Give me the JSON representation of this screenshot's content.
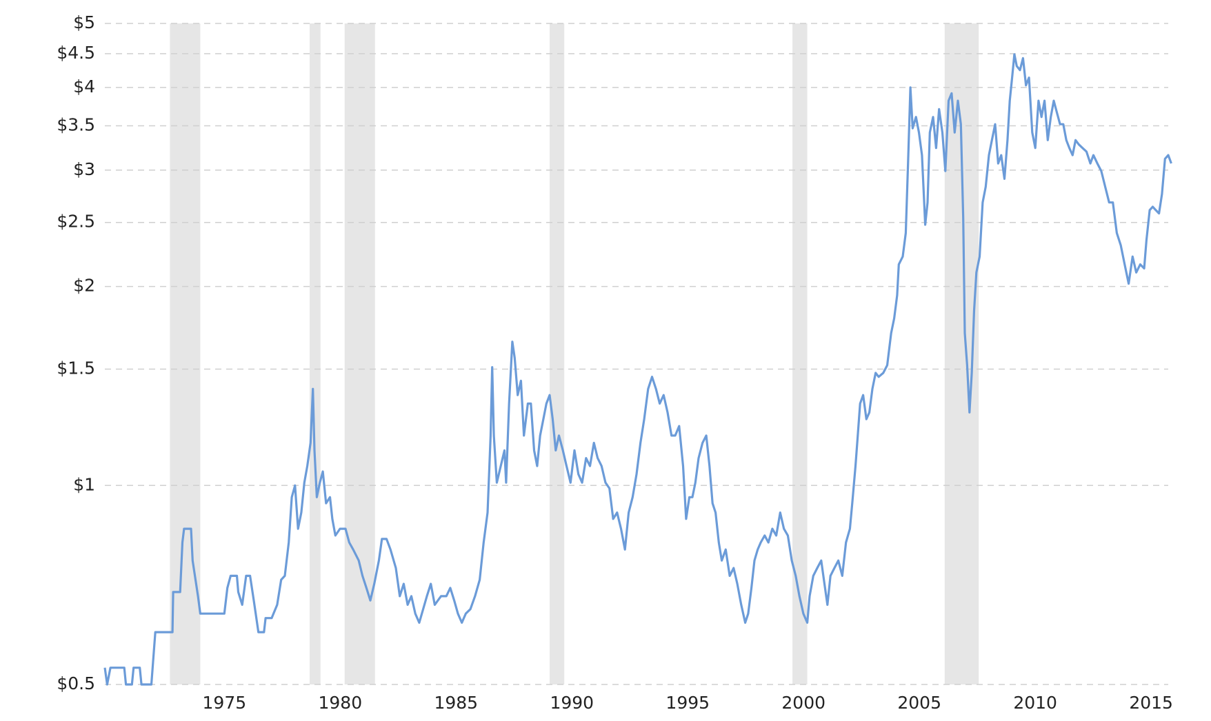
{
  "chart_data": {
    "type": "line",
    "log_scale": true,
    "grid": true,
    "color": "#6b9bd8",
    "shade_color": "#e6e6e6",
    "xlim": [
      1969.84,
      2015.74
    ],
    "ylim": [
      0.5,
      5
    ],
    "xticks": [
      1975,
      1980,
      1985,
      1990,
      1995,
      2000,
      2005,
      2010,
      2015
    ],
    "yticks": [
      {
        "value": 0.5,
        "label": "$0.5"
      },
      {
        "value": 1,
        "label": "$1"
      },
      {
        "value": 1.5,
        "label": "$1.5"
      },
      {
        "value": 2,
        "label": "$2"
      },
      {
        "value": 2.5,
        "label": "$2.5"
      },
      {
        "value": 3,
        "label": "$3"
      },
      {
        "value": 3.5,
        "label": "$3.5"
      },
      {
        "value": 4,
        "label": "$4"
      },
      {
        "value": 4.5,
        "label": "$4.5"
      },
      {
        "value": 5,
        "label": "$5"
      }
    ],
    "shaded_ranges": [
      [
        1972.65,
        1973.96
      ],
      [
        1978.68,
        1979.15
      ],
      [
        1980.19,
        1981.5
      ],
      [
        1989.04,
        1989.67
      ],
      [
        1999.52,
        2000.16
      ],
      [
        2006.09,
        2007.56
      ]
    ],
    "x": [
      1969.84,
      1969.94,
      1970.08,
      1970.68,
      1970.75,
      1971.01,
      1971.08,
      1971.35,
      1971.42,
      1971.85,
      1971.92,
      1972.02,
      1972.76,
      1972.79,
      1973.09,
      1973.19,
      1973.26,
      1973.56,
      1973.63,
      1973.86,
      1973.96,
      1974.87,
      1975.0,
      1975.13,
      1975.27,
      1975.54,
      1975.6,
      1975.77,
      1975.94,
      1976.11,
      1976.27,
      1976.47,
      1976.71,
      1976.78,
      1977.04,
      1977.28,
      1977.45,
      1977.61,
      1977.78,
      1977.91,
      1978.05,
      1978.18,
      1978.32,
      1978.45,
      1978.58,
      1978.72,
      1978.82,
      1978.89,
      1978.99,
      1979.12,
      1979.25,
      1979.39,
      1979.56,
      1979.66,
      1979.79,
      1979.99,
      1980.23,
      1980.39,
      1980.56,
      1980.8,
      1980.96,
      1981.13,
      1981.3,
      1981.47,
      1981.67,
      1981.8,
      1982.0,
      1982.17,
      1982.4,
      1982.57,
      1982.74,
      1982.91,
      1983.07,
      1983.24,
      1983.41,
      1983.58,
      1983.74,
      1983.91,
      1984.08,
      1984.35,
      1984.58,
      1984.75,
      1984.92,
      1985.08,
      1985.25,
      1985.42,
      1985.62,
      1985.82,
      1986.02,
      1986.19,
      1986.36,
      1986.49,
      1986.56,
      1986.63,
      1986.76,
      1986.93,
      1987.09,
      1987.16,
      1987.29,
      1987.43,
      1987.53,
      1987.66,
      1987.8,
      1987.93,
      1988.1,
      1988.23,
      1988.37,
      1988.5,
      1988.63,
      1988.77,
      1988.9,
      1989.04,
      1989.17,
      1989.3,
      1989.44,
      1989.61,
      1989.77,
      1989.94,
      1990.11,
      1990.28,
      1990.44,
      1990.61,
      1990.78,
      1990.95,
      1991.11,
      1991.28,
      1991.45,
      1991.62,
      1991.78,
      1991.95,
      1992.12,
      1992.29,
      1992.45,
      1992.62,
      1992.79,
      1992.96,
      1993.12,
      1993.29,
      1993.46,
      1993.63,
      1993.79,
      1993.96,
      1994.13,
      1994.3,
      1994.46,
      1994.63,
      1994.8,
      1994.93,
      1995.07,
      1995.2,
      1995.33,
      1995.47,
      1995.64,
      1995.8,
      1995.94,
      1996.07,
      1996.2,
      1996.34,
      1996.47,
      1996.64,
      1996.81,
      1996.98,
      1997.14,
      1997.31,
      1997.48,
      1997.61,
      1997.75,
      1997.88,
      1998.02,
      1998.15,
      1998.32,
      1998.48,
      1998.65,
      1998.82,
      1998.99,
      1999.15,
      1999.32,
      1999.49,
      1999.66,
      1999.82,
      1999.99,
      2000.16,
      2000.26,
      2000.42,
      2000.59,
      2000.76,
      2000.9,
      2001.03,
      2001.16,
      2001.33,
      2001.5,
      2001.67,
      2001.83,
      2002.0,
      2002.1,
      2002.24,
      2002.34,
      2002.44,
      2002.57,
      2002.71,
      2002.84,
      2002.97,
      2003.11,
      2003.24,
      2003.44,
      2003.61,
      2003.78,
      2003.91,
      2004.04,
      2004.11,
      2004.28,
      2004.41,
      2004.51,
      2004.61,
      2004.71,
      2004.85,
      2004.98,
      2005.11,
      2005.25,
      2005.35,
      2005.45,
      2005.59,
      2005.72,
      2005.85,
      2005.99,
      2006.12,
      2006.26,
      2006.39,
      2006.52,
      2006.66,
      2006.79,
      2006.89,
      2006.96,
      2007.06,
      2007.16,
      2007.26,
      2007.36,
      2007.46,
      2007.6,
      2007.73,
      2007.86,
      2008.0,
      2008.13,
      2008.27,
      2008.4,
      2008.53,
      2008.67,
      2008.8,
      2008.9,
      2009.0,
      2009.1,
      2009.2,
      2009.34,
      2009.47,
      2009.6,
      2009.73,
      2009.87,
      2010.0,
      2010.14,
      2010.27,
      2010.4,
      2010.54,
      2010.67,
      2010.8,
      2010.94,
      2011.07,
      2011.21,
      2011.34,
      2011.47,
      2011.61,
      2011.74,
      2011.88,
      2012.04,
      2012.21,
      2012.38,
      2012.51,
      2012.68,
      2012.85,
      2013.02,
      2013.19,
      2013.35,
      2013.52,
      2013.69,
      2013.86,
      2014.03,
      2014.2,
      2014.36,
      2014.53,
      2014.7,
      2014.8,
      2014.94,
      2015.07,
      2015.2,
      2015.34,
      2015.47,
      2015.6,
      2015.74,
      2015.87
    ],
    "values": [
      0.53,
      0.5,
      0.53,
      0.53,
      0.5,
      0.5,
      0.53,
      0.53,
      0.5,
      0.5,
      0.54,
      0.6,
      0.6,
      0.69,
      0.69,
      0.82,
      0.86,
      0.86,
      0.77,
      0.68,
      0.64,
      0.64,
      0.64,
      0.7,
      0.73,
      0.73,
      0.69,
      0.66,
      0.73,
      0.73,
      0.67,
      0.6,
      0.6,
      0.63,
      0.63,
      0.66,
      0.72,
      0.73,
      0.82,
      0.96,
      1.0,
      0.86,
      0.91,
      1.01,
      1.07,
      1.16,
      1.4,
      1.13,
      0.96,
      1.01,
      1.05,
      0.94,
      0.96,
      0.89,
      0.84,
      0.86,
      0.86,
      0.82,
      0.8,
      0.77,
      0.73,
      0.7,
      0.67,
      0.71,
      0.77,
      0.83,
      0.83,
      0.8,
      0.75,
      0.68,
      0.71,
      0.66,
      0.68,
      0.64,
      0.62,
      0.65,
      0.68,
      0.71,
      0.66,
      0.68,
      0.68,
      0.7,
      0.67,
      0.64,
      0.62,
      0.64,
      0.65,
      0.68,
      0.72,
      0.82,
      0.91,
      1.19,
      1.51,
      1.19,
      1.01,
      1.07,
      1.13,
      1.01,
      1.33,
      1.65,
      1.56,
      1.37,
      1.44,
      1.19,
      1.33,
      1.33,
      1.13,
      1.07,
      1.19,
      1.26,
      1.33,
      1.37,
      1.26,
      1.13,
      1.19,
      1.13,
      1.07,
      1.01,
      1.13,
      1.04,
      1.01,
      1.1,
      1.07,
      1.16,
      1.1,
      1.07,
      1.01,
      0.99,
      0.89,
      0.91,
      0.86,
      0.8,
      0.91,
      0.96,
      1.04,
      1.16,
      1.26,
      1.4,
      1.46,
      1.4,
      1.33,
      1.37,
      1.29,
      1.19,
      1.19,
      1.23,
      1.07,
      0.89,
      0.96,
      0.96,
      1.01,
      1.1,
      1.16,
      1.19,
      1.07,
      0.94,
      0.91,
      0.82,
      0.77,
      0.8,
      0.73,
      0.75,
      0.71,
      0.66,
      0.62,
      0.64,
      0.7,
      0.77,
      0.8,
      0.82,
      0.84,
      0.82,
      0.86,
      0.84,
      0.91,
      0.86,
      0.84,
      0.77,
      0.73,
      0.68,
      0.64,
      0.62,
      0.68,
      0.73,
      0.75,
      0.77,
      0.71,
      0.66,
      0.73,
      0.75,
      0.77,
      0.73,
      0.82,
      0.86,
      0.94,
      1.07,
      1.19,
      1.33,
      1.37,
      1.26,
      1.29,
      1.4,
      1.48,
      1.46,
      1.48,
      1.52,
      1.7,
      1.79,
      1.94,
      2.16,
      2.22,
      2.41,
      3.07,
      4.0,
      3.47,
      3.61,
      3.42,
      3.16,
      2.48,
      2.68,
      3.42,
      3.61,
      3.24,
      3.71,
      3.42,
      2.99,
      3.82,
      3.92,
      3.42,
      3.82,
      3.52,
      2.54,
      1.7,
      1.52,
      1.29,
      1.48,
      1.84,
      2.1,
      2.22,
      2.68,
      2.83,
      3.16,
      3.33,
      3.52,
      3.07,
      3.16,
      2.91,
      3.33,
      3.82,
      4.14,
      4.49,
      4.31,
      4.25,
      4.43,
      4.03,
      4.14,
      3.42,
      3.24,
      3.82,
      3.61,
      3.82,
      3.33,
      3.61,
      3.82,
      3.66,
      3.52,
      3.52,
      3.33,
      3.24,
      3.16,
      3.33,
      3.28,
      3.24,
      3.2,
      3.07,
      3.16,
      3.07,
      2.99,
      2.83,
      2.68,
      2.68,
      2.41,
      2.31,
      2.16,
      2.02,
      2.22,
      2.1,
      2.16,
      2.13,
      2.35,
      2.61,
      2.64,
      2.61,
      2.58,
      2.76,
      3.12,
      3.16,
      3.07
    ]
  }
}
